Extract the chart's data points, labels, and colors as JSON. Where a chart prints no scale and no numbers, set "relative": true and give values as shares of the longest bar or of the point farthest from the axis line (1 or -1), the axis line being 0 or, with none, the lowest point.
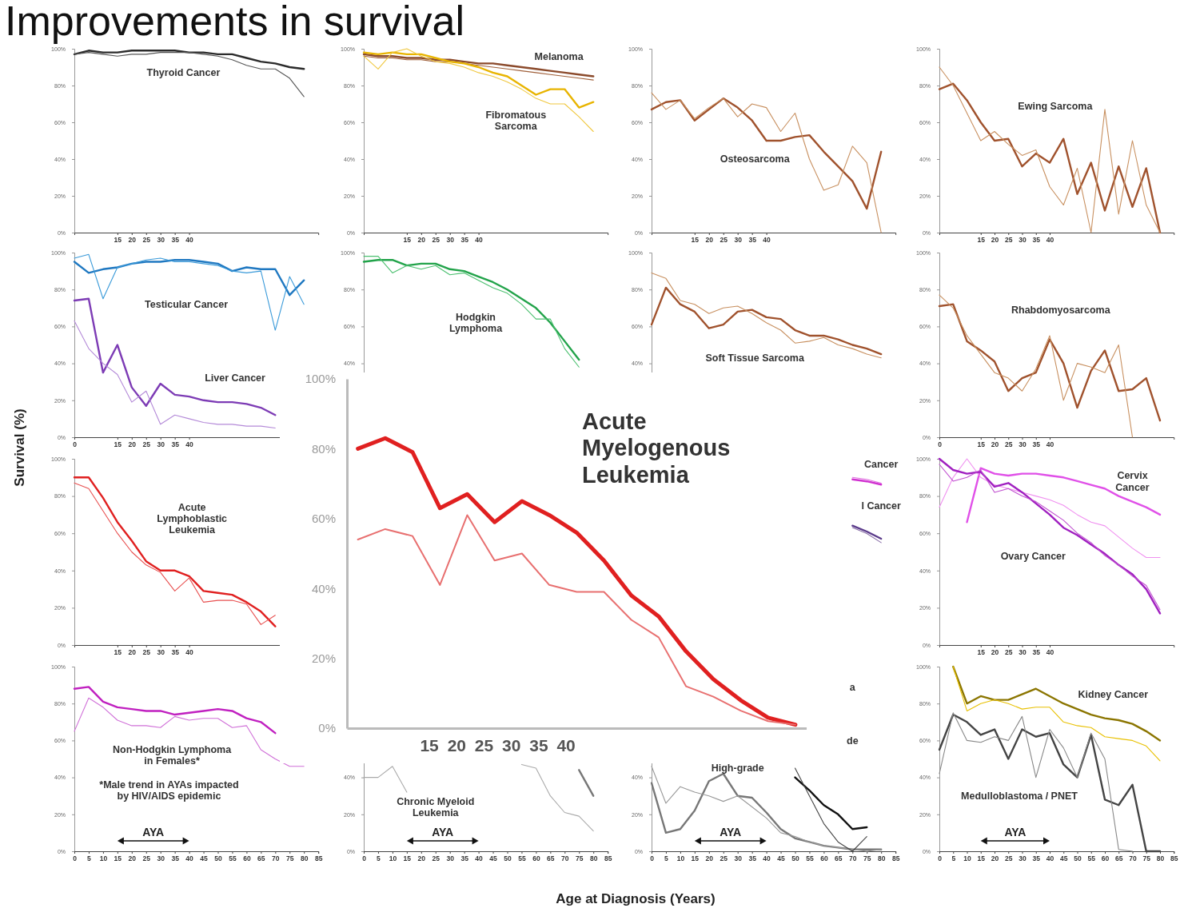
{
  "chart_data": [
    {
      "type": "other",
      "title": "Improvements in survival",
      "xlabel": "Age at Diagnosis (Years)",
      "ylabel": "Survival (%)"
    },
    {
      "type": "line",
      "x": [
        0,
        5,
        10,
        15,
        20,
        25,
        30,
        35,
        40,
        45,
        50,
        55,
        60,
        65,
        70,
        75,
        80
      ],
      "xlim": [
        0,
        85
      ],
      "ylim": [
        0,
        100
      ],
      "xticks": [
        15,
        20,
        25,
        30,
        35,
        40
      ],
      "yticks": [
        {
          "value": 0,
          "label": "0%"
        },
        {
          "value": 20,
          "label": "20%"
        },
        {
          "value": 40,
          "label": "40%"
        },
        {
          "value": 60,
          "label": "60%"
        },
        {
          "value": 80,
          "label": "80%"
        },
        {
          "value": 100,
          "label": "100%"
        }
      ],
      "series": [
        {
          "color": "#2b2b2b",
          "values": [
            97,
            99,
            98,
            98,
            99,
            99,
            99,
            99,
            98,
            98,
            97,
            97,
            95,
            93,
            92,
            90,
            89
          ]
        },
        {
          "color": "#555555",
          "values": [
            97,
            98,
            97,
            96,
            97,
            97,
            98,
            98,
            98,
            97,
            96,
            94,
            91,
            89,
            89,
            84,
            74
          ]
        }
      ],
      "annotations": [
        "Thyroid Cancer"
      ]
    },
    {
      "type": "line",
      "x": [
        0,
        5,
        10,
        15,
        20,
        25,
        30,
        35,
        40,
        45,
        50,
        55,
        60,
        65,
        70,
        75,
        80
      ],
      "xlim": [
        0,
        85
      ],
      "ylim": [
        0,
        100
      ],
      "xticks": [
        15,
        20,
        25,
        30,
        35,
        40
      ],
      "yticks": [
        {
          "value": 0,
          "label": "0%"
        },
        {
          "value": 20,
          "label": "20%"
        },
        {
          "value": 40,
          "label": "40%"
        },
        {
          "value": 60,
          "label": "60%"
        },
        {
          "value": 80,
          "label": "80%"
        },
        {
          "value": 100,
          "label": "100%"
        }
      ],
      "series": [
        {
          "color": "#8b4a2b",
          "values": [
            97,
            96,
            96,
            95,
            95,
            94,
            94,
            93,
            92,
            92,
            91,
            90,
            89,
            88,
            87,
            86,
            85
          ]
        },
        {
          "color": "#a0603a",
          "values": [
            96,
            95,
            95,
            94,
            94,
            93,
            93,
            92,
            91,
            90,
            89,
            88,
            87,
            86,
            85,
            84,
            83
          ]
        },
        {
          "color": "#e8b400",
          "values": [
            98,
            97,
            98,
            97,
            97,
            95,
            93,
            92,
            90,
            87,
            85,
            80,
            75,
            78,
            78,
            68,
            71
          ]
        },
        {
          "color": "#f0c840",
          "values": [
            96,
            89,
            98,
            100,
            96,
            93,
            92,
            90,
            87,
            85,
            82,
            78,
            73,
            70,
            70,
            63,
            55
          ]
        }
      ],
      "annotations": [
        "Melanoma",
        "Fibromatous\nSarcoma"
      ]
    },
    {
      "type": "line",
      "x": [
        0,
        5,
        10,
        15,
        20,
        25,
        30,
        35,
        40,
        45,
        50,
        55,
        60,
        65,
        70,
        75,
        80
      ],
      "xlim": [
        0,
        85
      ],
      "ylim": [
        0,
        100
      ],
      "xticks": [
        15,
        20,
        25,
        30,
        35,
        40
      ],
      "yticks": [
        {
          "value": 0,
          "label": "0%"
        },
        {
          "value": 20,
          "label": "20%"
        },
        {
          "value": 40,
          "label": "40%"
        },
        {
          "value": 60,
          "label": "60%"
        },
        {
          "value": 80,
          "label": "80%"
        },
        {
          "value": 100,
          "label": "100%"
        }
      ],
      "series": [
        {
          "color": "#a0522d",
          "values": [
            67,
            71,
            72,
            61,
            67,
            73,
            68,
            61,
            50,
            50,
            52,
            53,
            44,
            36,
            28,
            13,
            44
          ]
        },
        {
          "color": "#c89060",
          "values": [
            76,
            67,
            72,
            62,
            68,
            73,
            63,
            70,
            68,
            55,
            65,
            40,
            23,
            26,
            47,
            38,
            0
          ]
        }
      ],
      "annotations": [
        "Osteosarcoma"
      ]
    },
    {
      "type": "line",
      "x": [
        0,
        5,
        10,
        15,
        20,
        25,
        30,
        35,
        40,
        45,
        50,
        55,
        60,
        65,
        70,
        75,
        80
      ],
      "xlim": [
        0,
        85
      ],
      "ylim": [
        0,
        100
      ],
      "xticks": [
        15,
        20,
        25,
        30,
        35,
        40
      ],
      "yticks": [
        {
          "value": 0,
          "label": "0%"
        },
        {
          "value": 20,
          "label": "20%"
        },
        {
          "value": 40,
          "label": "40%"
        },
        {
          "value": 60,
          "label": "60%"
        },
        {
          "value": 80,
          "label": "80%"
        },
        {
          "value": 100,
          "label": "100%"
        }
      ],
      "series": [
        {
          "color": "#a0522d",
          "values": [
            78,
            81,
            72,
            60,
            50,
            51,
            36,
            43,
            38,
            51,
            21,
            38,
            12,
            36,
            14,
            35,
            0
          ]
        },
        {
          "color": "#c89060",
          "values": [
            90,
            80,
            65,
            50,
            55,
            48,
            42,
            45,
            25,
            15,
            35,
            0,
            67,
            10,
            50,
            15,
            0
          ]
        }
      ],
      "annotations": [
        "Ewing Sarcoma"
      ]
    },
    {
      "type": "line",
      "x": [
        0,
        5,
        10,
        15,
        20,
        25,
        30,
        35,
        40,
        45,
        50,
        55,
        60,
        65,
        70,
        75,
        80
      ],
      "xlim": [
        0,
        85
      ],
      "ylim": [
        0,
        100
      ],
      "xticks": [
        0,
        15,
        20,
        25,
        30,
        35,
        40
      ],
      "yticks": [
        {
          "value": 0,
          "label": "0%"
        },
        {
          "value": 20,
          "label": "20%"
        },
        {
          "value": 40,
          "label": "40%"
        },
        {
          "value": 60,
          "label": "60%"
        },
        {
          "value": 80,
          "label": "80%"
        },
        {
          "value": 100,
          "label": "100%"
        }
      ],
      "series": [
        {
          "color": "#1f78c1",
          "values": [
            95,
            89,
            91,
            92,
            94,
            95,
            95,
            96,
            96,
            95,
            94,
            90,
            92,
            91,
            91,
            77,
            85
          ]
        },
        {
          "color": "#3a9ad9",
          "values": [
            97,
            99,
            75,
            92,
            94,
            96,
            97,
            95,
            95,
            94,
            93,
            90,
            89,
            90,
            58,
            87,
            72
          ]
        },
        {
          "color": "#7d3cb5",
          "values": [
            74,
            75,
            35,
            50,
            27,
            17,
            29,
            23,
            22,
            20,
            19,
            19,
            18,
            16,
            12,
            null,
            null
          ]
        },
        {
          "color": "#b48ad8",
          "values": [
            63,
            48,
            40,
            34,
            19,
            25,
            7,
            12,
            10,
            8,
            7,
            7,
            6,
            6,
            5,
            null,
            null
          ]
        }
      ],
      "annotations": [
        "Testicular Cancer",
        "Liver Cancer"
      ]
    },
    {
      "type": "line",
      "categories": [
        null,
        null,
        null,
        null,
        null,
        null,
        null,
        null,
        null,
        null,
        null,
        null,
        null,
        null,
        null,
        null
      ],
      "ylim": [
        0,
        100
      ],
      "yticks": [
        {
          "value": 40,
          "label": "40%"
        },
        {
          "value": 60,
          "label": "60%"
        },
        {
          "value": 80,
          "label": "80%"
        },
        {
          "value": 100,
          "label": "100%"
        }
      ],
      "tick_labels": "y",
      "series": [
        {
          "color": "#22a34a",
          "values": [
            95,
            96,
            96,
            93,
            94,
            94,
            91,
            90,
            87,
            84,
            80,
            75,
            70,
            62,
            52,
            42
          ]
        },
        {
          "color": "#4cc070",
          "values": [
            98,
            98,
            89,
            93,
            91,
            93,
            88,
            89,
            85,
            81,
            78,
            72,
            64,
            64,
            48,
            38
          ]
        }
      ],
      "annotations": [
        "Hodgkin\nLymphoma"
      ]
    },
    {
      "type": "line",
      "categories": [
        null,
        null,
        null,
        null,
        null,
        null,
        null,
        null,
        null,
        null,
        null,
        null,
        null,
        null,
        null,
        null,
        null
      ],
      "ylim": [
        0,
        100
      ],
      "yticks": [
        {
          "value": 40,
          "label": "40%"
        },
        {
          "value": 60,
          "label": "60%"
        },
        {
          "value": 80,
          "label": "80%"
        },
        {
          "value": 100,
          "label": "100%"
        }
      ],
      "tick_labels": "y",
      "series": [
        {
          "color": "#a0522d",
          "values": [
            61,
            81,
            72,
            68,
            59,
            61,
            68,
            69,
            65,
            64,
            58,
            55,
            55,
            53,
            50,
            48,
            45
          ]
        },
        {
          "color": "#c89060",
          "values": [
            89,
            86,
            74,
            72,
            67,
            70,
            71,
            67,
            62,
            58,
            51,
            52,
            54,
            50,
            48,
            45,
            43
          ]
        }
      ],
      "annotations": [
        "Soft Tissue Sarcoma"
      ]
    },
    {
      "type": "line",
      "x": [
        0,
        5,
        10,
        15,
        20,
        25,
        30,
        35,
        40,
        45,
        50,
        55,
        60,
        65,
        70,
        75,
        80
      ],
      "xlim": [
        0,
        85
      ],
      "ylim": [
        0,
        100
      ],
      "xticks": [
        0,
        15,
        20,
        25,
        30,
        35,
        40
      ],
      "yticks": [
        {
          "value": 0,
          "label": "0%"
        },
        {
          "value": 20,
          "label": "20%"
        },
        {
          "value": 40,
          "label": "40%"
        },
        {
          "value": 60,
          "label": "60%"
        },
        {
          "value": 80,
          "label": "80%"
        },
        {
          "value": 100,
          "label": "100%"
        }
      ],
      "series": [
        {
          "color": "#a0522d",
          "values": [
            71,
            72,
            52,
            47,
            41,
            25,
            32,
            35,
            53,
            40,
            16,
            36,
            47,
            25,
            26,
            32,
            9
          ]
        },
        {
          "color": "#c89060",
          "values": [
            77,
            70,
            55,
            45,
            35,
            32,
            25,
            37,
            55,
            20,
            40,
            38,
            35,
            50,
            0,
            null,
            null
          ]
        }
      ],
      "annotations": [
        "Rhabdomyosarcoma"
      ]
    },
    {
      "type": "line",
      "x": [
        0,
        5,
        10,
        15,
        20,
        25,
        30,
        35,
        40,
        45,
        50,
        55,
        60,
        65,
        70
      ],
      "xlim": [
        0,
        85
      ],
      "ylim": [
        0,
        100
      ],
      "xticks": [
        15,
        20,
        25,
        30,
        35,
        40
      ],
      "yticks": [
        {
          "value": 0,
          "label": "0%"
        },
        {
          "value": 20,
          "label": "20%"
        },
        {
          "value": 40,
          "label": "40%"
        },
        {
          "value": 60,
          "label": "60%"
        },
        {
          "value": 80,
          "label": "80%"
        },
        {
          "value": 100,
          "label": "100%"
        }
      ],
      "series": [
        {
          "color": "#e02020",
          "values": [
            90,
            90,
            79,
            66,
            56,
            45,
            40,
            40,
            37,
            29,
            28,
            27,
            23,
            18,
            10
          ]
        },
        {
          "color": "#e85050",
          "values": [
            87,
            84,
            72,
            60,
            50,
            43,
            39,
            29,
            36,
            23,
            24,
            24,
            22,
            11,
            16
          ]
        }
      ],
      "annotations": [
        "Acute\nLymphoblastic\nLeukemia"
      ]
    },
    {
      "type": "line",
      "categories": [
        null,
        null,
        null
      ],
      "relative": true,
      "series": [
        {
          "color": "#d030d0",
          "values": [
            0.97,
            0.94,
            0.89
          ]
        },
        {
          "color": "#e070e0",
          "values": [
            1,
            0.97,
            0.91
          ]
        },
        {
          "color": "#5a3a8a",
          "values": [
            0.26,
            0.17,
            0.06
          ]
        },
        {
          "color": "#8a70a8",
          "values": [
            0.23,
            0.14,
            0
          ]
        }
      ],
      "annotations": [
        "Cancer",
        "l Cancer"
      ]
    },
    {
      "type": "line",
      "x": [
        0,
        5,
        10,
        15,
        20,
        25,
        30,
        35,
        40,
        45,
        50,
        55,
        60,
        65,
        70,
        75,
        80
      ],
      "xlim": [
        0,
        85
      ],
      "ylim": [
        0,
        100
      ],
      "xticks": [
        15,
        20,
        25,
        30,
        35,
        40
      ],
      "yticks": [
        {
          "value": 0,
          "label": "0%"
        },
        {
          "value": 20,
          "label": "20%"
        },
        {
          "value": 40,
          "label": "40%"
        },
        {
          "value": 60,
          "label": "60%"
        },
        {
          "value": 80,
          "label": "80%"
        },
        {
          "value": 100,
          "label": "100%"
        }
      ],
      "series": [
        {
          "color": "#e050e8",
          "values": [
            null,
            null,
            66,
            95,
            92,
            91,
            92,
            92,
            91,
            90,
            88,
            86,
            84,
            80,
            77,
            74,
            70
          ]
        },
        {
          "color": "#f090f0",
          "values": [
            74,
            90,
            100,
            90,
            86,
            84,
            82,
            80,
            78,
            75,
            70,
            66,
            64,
            58,
            52,
            47,
            47
          ]
        },
        {
          "color": "#a020c0",
          "values": [
            100,
            94,
            92,
            93,
            85,
            87,
            82,
            76,
            70,
            63,
            59,
            54,
            49,
            43,
            38,
            30,
            17
          ]
        },
        {
          "color": "#c050d0",
          "values": [
            97,
            88,
            90,
            94,
            82,
            84,
            80,
            77,
            72,
            67,
            60,
            55,
            48,
            43,
            37,
            32,
            19
          ]
        }
      ],
      "annotations": [
        "Cervix\nCancer",
        "Ovary Cancer"
      ]
    },
    {
      "type": "line",
      "x": [
        0,
        5,
        10,
        15,
        20,
        25,
        30,
        35,
        40,
        45,
        50,
        55,
        60,
        65,
        70,
        75,
        80
      ],
      "xlim": [
        0,
        85
      ],
      "ylim": [
        0,
        100
      ],
      "xticks": [
        0,
        5,
        10,
        15,
        20,
        25,
        30,
        35,
        40,
        45,
        50,
        55,
        60,
        65,
        70,
        75,
        80,
        85
      ],
      "yticks": [
        {
          "value": 0,
          "label": "0%"
        },
        {
          "value": 20,
          "label": "20%"
        },
        {
          "value": 40,
          "label": "40%"
        },
        {
          "value": 60,
          "label": "60%"
        },
        {
          "value": 80,
          "label": "80%"
        },
        {
          "value": 100,
          "label": "100%"
        }
      ],
      "series": [
        {
          "color": "#c020c0",
          "values": [
            88,
            89,
            81,
            78,
            77,
            76,
            76,
            74,
            75,
            76,
            77,
            76,
            72,
            70,
            64,
            null,
            null
          ]
        },
        {
          "color": "#d070d8",
          "values": [
            65,
            83,
            78,
            71,
            68,
            68,
            67,
            73,
            71,
            72,
            72,
            67,
            68,
            55,
            50,
            46,
            46
          ]
        }
      ],
      "annotations": [
        "Non-Hodgkin Lymphoma\nin Females*",
        "*Male trend in AYAs impacted\nby HIV/AIDS epidemic",
        "AYA"
      ]
    },
    {
      "type": "line",
      "x": [
        0,
        5,
        10,
        15,
        20,
        25,
        30,
        35,
        40,
        45,
        50,
        55,
        60,
        65,
        70,
        75,
        80
      ],
      "xlim": [
        0,
        85
      ],
      "ylim": [
        0,
        100
      ],
      "xticks": [
        0,
        5,
        10,
        15,
        20,
        25,
        30,
        35,
        40,
        45,
        50,
        55,
        60,
        65,
        70,
        75,
        80,
        85
      ],
      "yticks": [
        {
          "value": 0,
          "label": "0%"
        },
        {
          "value": 20,
          "label": "20%"
        },
        {
          "value": 40,
          "label": "40%"
        }
      ],
      "series": [
        {
          "color": "#777777",
          "values": [
            null,
            null,
            null,
            null,
            null,
            null,
            null,
            null,
            null,
            null,
            null,
            null,
            null,
            null,
            null,
            44,
            30
          ]
        },
        {
          "color": "#aaaaaa",
          "values": [
            40,
            40,
            46,
            32,
            null,
            null,
            null,
            null,
            null,
            null,
            null,
            47,
            45,
            30,
            21,
            19,
            11
          ]
        }
      ],
      "annotations": [
        "Chronic Myeloid\nLeukemia",
        "AYA"
      ]
    },
    {
      "type": "line",
      "x": [
        0,
        5,
        10,
        15,
        20,
        25,
        30,
        35,
        40,
        45,
        50,
        55,
        60,
        65,
        70,
        75,
        80
      ],
      "xlim": [
        0,
        85
      ],
      "ylim": [
        0,
        100
      ],
      "xticks": [
        0,
        5,
        10,
        15,
        20,
        25,
        30,
        35,
        40,
        45,
        50,
        55,
        60,
        65,
        70,
        75,
        80,
        85
      ],
      "yticks": [
        {
          "value": 0,
          "label": "0%"
        },
        {
          "value": 20,
          "label": "20%"
        },
        {
          "value": 40,
          "label": "40%"
        }
      ],
      "series": [
        {
          "color": "#777777",
          "values": [
            37,
            10,
            12,
            22,
            38,
            42,
            30,
            29,
            21,
            12,
            7,
            5,
            3,
            2,
            1,
            1,
            1
          ]
        },
        {
          "color": "#999999",
          "values": [
            46,
            26,
            35,
            32,
            30,
            27,
            30,
            24,
            18,
            10,
            8,
            5,
            3,
            2,
            1,
            0,
            1
          ]
        },
        {
          "color": "#111111",
          "values": [
            null,
            null,
            null,
            null,
            null,
            null,
            null,
            null,
            null,
            null,
            40,
            33,
            25,
            20,
            12,
            13,
            null
          ]
        },
        {
          "color": "#444444",
          "values": [
            null,
            null,
            null,
            null,
            null,
            null,
            null,
            null,
            null,
            null,
            45,
            30,
            15,
            5,
            0,
            8,
            null
          ]
        }
      ],
      "annotations": [
        "High-grade",
        "a",
        "de",
        "AYA"
      ]
    },
    {
      "type": "line",
      "x": [
        0,
        5,
        10,
        15,
        20,
        25,
        30,
        35,
        40,
        45,
        50,
        55,
        60,
        65,
        70,
        75,
        80
      ],
      "xlim": [
        0,
        85
      ],
      "ylim": [
        0,
        100
      ],
      "xticks": [
        0,
        5,
        10,
        15,
        20,
        25,
        30,
        35,
        40,
        45,
        50,
        55,
        60,
        65,
        70,
        75,
        80,
        85
      ],
      "yticks": [
        {
          "value": 0,
          "label": "0%"
        },
        {
          "value": 20,
          "label": "20%"
        },
        {
          "value": 40,
          "label": "40%"
        },
        {
          "value": 60,
          "label": "60%"
        },
        {
          "value": 80,
          "label": "80%"
        },
        {
          "value": 100,
          "label": "100%"
        }
      ],
      "series": [
        {
          "color": "#8b7500",
          "values": [
            null,
            100,
            80,
            84,
            82,
            82,
            85,
            88,
            84,
            80,
            77,
            74,
            72,
            71,
            69,
            65,
            60
          ]
        },
        {
          "color": "#e8c000",
          "values": [
            null,
            100,
            76,
            80,
            82,
            80,
            77,
            78,
            78,
            70,
            68,
            67,
            62,
            61,
            60,
            57,
            49
          ]
        },
        {
          "color": "#444444",
          "values": [
            55,
            74,
            70,
            63,
            66,
            50,
            66,
            62,
            64,
            47,
            40,
            63,
            28,
            25,
            36,
            0,
            0
          ]
        },
        {
          "color": "#888888",
          "values": [
            42,
            75,
            60,
            59,
            62,
            60,
            73,
            40,
            66,
            56,
            40,
            64,
            50,
            1,
            0,
            null,
            null
          ]
        }
      ],
      "annotations": [
        "Kidney Cancer",
        "Medulloblastoma / PNET",
        "AYA"
      ]
    },
    {
      "type": "line",
      "title": "Acute\nMyelogenous\nLeukemia",
      "x": [
        2,
        7,
        12,
        17,
        22,
        27,
        32,
        37,
        42,
        47,
        52,
        57,
        62,
        67,
        72,
        77,
        82
      ],
      "xlim": [
        0,
        84
      ],
      "ylim": [
        0,
        100
      ],
      "xticks": [
        15,
        20,
        25,
        30,
        35,
        40
      ],
      "yticks": [
        {
          "value": 0,
          "label": "0%"
        },
        {
          "value": 20,
          "label": "20%"
        },
        {
          "value": 40,
          "label": "40%"
        },
        {
          "value": 60,
          "label": "60%"
        },
        {
          "value": 80,
          "label": "80%"
        },
        {
          "value": 100,
          "label": "100%"
        }
      ],
      "series": [
        {
          "color": "#e02020",
          "values": [
            80,
            83,
            79,
            63,
            67,
            59,
            65,
            61,
            56,
            48,
            38,
            32,
            22,
            14,
            8,
            3,
            1
          ]
        },
        {
          "color": "#e87070",
          "values": [
            54,
            57,
            55,
            41,
            61,
            48,
            50,
            41,
            39,
            39,
            31,
            26,
            12,
            9,
            5,
            2,
            1
          ]
        }
      ]
    }
  ]
}
